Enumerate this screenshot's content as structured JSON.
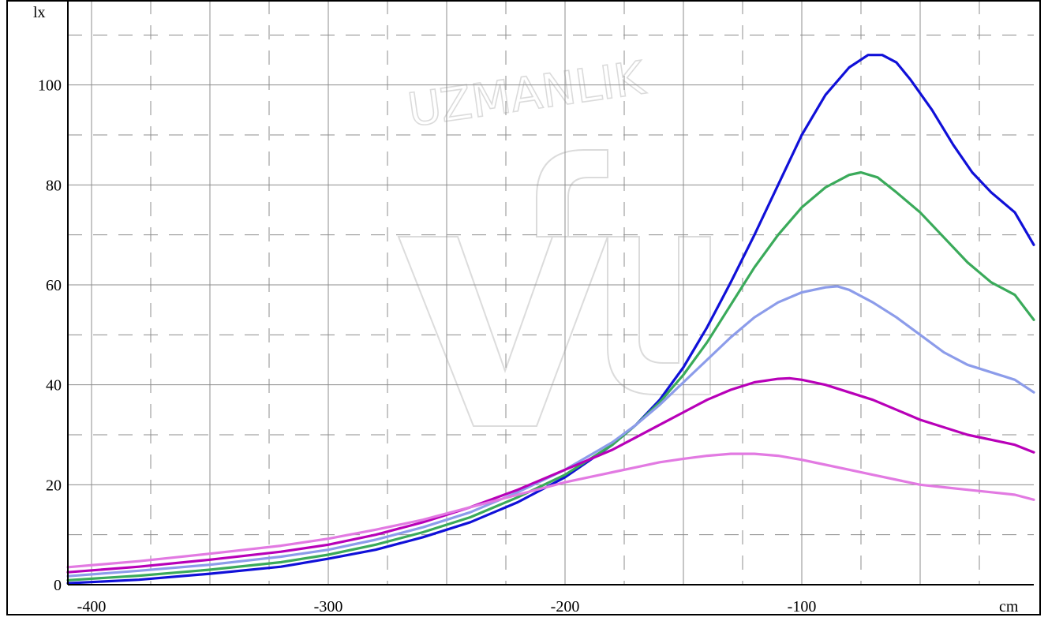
{
  "chart_data": {
    "type": "line",
    "x_unit": "cm",
    "y_unit": "lx",
    "xlim": [
      -410,
      -2
    ],
    "ylim": [
      0,
      117
    ],
    "x_ticks": [
      -400,
      -300,
      -200,
      -100
    ],
    "x_tick_labels": [
      "-400",
      "-300",
      "-200",
      "-100"
    ],
    "y_ticks": [
      0,
      20,
      40,
      60,
      80,
      100
    ],
    "y_tick_labels": [
      "0",
      "20",
      "40",
      "60",
      "80",
      "100"
    ],
    "grid": true,
    "colors": [
      "#1010d8",
      "#3aaa5a",
      "#8c9cea",
      "#b800b8",
      "#e27ae2"
    ],
    "series": [
      {
        "points": [
          [
            -410,
            0.3
          ],
          [
            -380,
            1.0
          ],
          [
            -350,
            2.2
          ],
          [
            -320,
            3.6
          ],
          [
            -300,
            5.2
          ],
          [
            -280,
            7.0
          ],
          [
            -260,
            9.5
          ],
          [
            -240,
            12.5
          ],
          [
            -220,
            16.5
          ],
          [
            -200,
            21.5
          ],
          [
            -180,
            28.0
          ],
          [
            -170,
            32.0
          ],
          [
            -160,
            37.0
          ],
          [
            -150,
            43.5
          ],
          [
            -140,
            51.5
          ],
          [
            -130,
            60.5
          ],
          [
            -120,
            70.0
          ],
          [
            -110,
            80.0
          ],
          [
            -100,
            90.0
          ],
          [
            -90,
            98.0
          ],
          [
            -80,
            103.5
          ],
          [
            -72,
            106.0
          ],
          [
            -66,
            106.0
          ],
          [
            -60,
            104.5
          ],
          [
            -54,
            101.0
          ],
          [
            -45,
            95.0
          ],
          [
            -36,
            88.0
          ],
          [
            -28,
            82.5
          ],
          [
            -20,
            78.5
          ],
          [
            -10,
            74.5
          ],
          [
            -2,
            68.0
          ]
        ]
      },
      {
        "points": [
          [
            -410,
            0.9
          ],
          [
            -380,
            1.8
          ],
          [
            -350,
            3.0
          ],
          [
            -320,
            4.5
          ],
          [
            -300,
            6.0
          ],
          [
            -280,
            8.0
          ],
          [
            -260,
            10.5
          ],
          [
            -240,
            13.5
          ],
          [
            -220,
            17.5
          ],
          [
            -200,
            22.0
          ],
          [
            -180,
            28.0
          ],
          [
            -170,
            32.0
          ],
          [
            -160,
            36.5
          ],
          [
            -150,
            42.0
          ],
          [
            -140,
            48.5
          ],
          [
            -130,
            56.0
          ],
          [
            -120,
            63.5
          ],
          [
            -110,
            70.0
          ],
          [
            -100,
            75.5
          ],
          [
            -90,
            79.5
          ],
          [
            -80,
            82.0
          ],
          [
            -75,
            82.5
          ],
          [
            -68,
            81.5
          ],
          [
            -60,
            78.5
          ],
          [
            -50,
            74.5
          ],
          [
            -40,
            69.5
          ],
          [
            -30,
            64.5
          ],
          [
            -20,
            60.5
          ],
          [
            -10,
            58.0
          ],
          [
            -2,
            53.0
          ]
        ]
      },
      {
        "points": [
          [
            -410,
            1.7
          ],
          [
            -380,
            2.8
          ],
          [
            -350,
            4.0
          ],
          [
            -320,
            5.6
          ],
          [
            -300,
            7.0
          ],
          [
            -280,
            9.0
          ],
          [
            -260,
            11.5
          ],
          [
            -240,
            14.5
          ],
          [
            -220,
            18.5
          ],
          [
            -200,
            23.0
          ],
          [
            -180,
            28.5
          ],
          [
            -170,
            32.0
          ],
          [
            -160,
            36.0
          ],
          [
            -150,
            40.5
          ],
          [
            -140,
            45.0
          ],
          [
            -130,
            49.5
          ],
          [
            -120,
            53.5
          ],
          [
            -110,
            56.5
          ],
          [
            -100,
            58.5
          ],
          [
            -90,
            59.5
          ],
          [
            -85,
            59.7
          ],
          [
            -80,
            59.0
          ],
          [
            -70,
            56.5
          ],
          [
            -60,
            53.5
          ],
          [
            -50,
            50.0
          ],
          [
            -40,
            46.5
          ],
          [
            -30,
            44.0
          ],
          [
            -20,
            42.5
          ],
          [
            -10,
            41.0
          ],
          [
            -2,
            38.5
          ]
        ]
      },
      {
        "points": [
          [
            -410,
            2.5
          ],
          [
            -380,
            3.6
          ],
          [
            -350,
            5.0
          ],
          [
            -320,
            6.6
          ],
          [
            -300,
            8.0
          ],
          [
            -280,
            10.0
          ],
          [
            -260,
            12.5
          ],
          [
            -240,
            15.5
          ],
          [
            -220,
            19.0
          ],
          [
            -200,
            23.0
          ],
          [
            -180,
            27.0
          ],
          [
            -170,
            29.5
          ],
          [
            -160,
            32.0
          ],
          [
            -150,
            34.5
          ],
          [
            -140,
            37.0
          ],
          [
            -130,
            39.0
          ],
          [
            -120,
            40.5
          ],
          [
            -110,
            41.2
          ],
          [
            -105,
            41.3
          ],
          [
            -100,
            41.0
          ],
          [
            -90,
            40.0
          ],
          [
            -80,
            38.5
          ],
          [
            -70,
            37.0
          ],
          [
            -60,
            35.0
          ],
          [
            -50,
            33.0
          ],
          [
            -40,
            31.5
          ],
          [
            -30,
            30.0
          ],
          [
            -20,
            29.0
          ],
          [
            -10,
            28.0
          ],
          [
            -2,
            26.5
          ]
        ]
      },
      {
        "points": [
          [
            -410,
            3.5
          ],
          [
            -380,
            4.7
          ],
          [
            -350,
            6.2
          ],
          [
            -320,
            7.8
          ],
          [
            -300,
            9.2
          ],
          [
            -280,
            11.0
          ],
          [
            -260,
            13.0
          ],
          [
            -240,
            15.5
          ],
          [
            -220,
            18.0
          ],
          [
            -200,
            20.5
          ],
          [
            -180,
            22.5
          ],
          [
            -170,
            23.5
          ],
          [
            -160,
            24.5
          ],
          [
            -150,
            25.2
          ],
          [
            -140,
            25.8
          ],
          [
            -130,
            26.2
          ],
          [
            -120,
            26.2
          ],
          [
            -110,
            25.8
          ],
          [
            -100,
            25.0
          ],
          [
            -90,
            24.0
          ],
          [
            -80,
            23.0
          ],
          [
            -70,
            22.0
          ],
          [
            -60,
            21.0
          ],
          [
            -50,
            20.0
          ],
          [
            -40,
            19.5
          ],
          [
            -30,
            19.0
          ],
          [
            -20,
            18.5
          ],
          [
            -10,
            18.0
          ],
          [
            -2,
            17.0
          ]
        ]
      }
    ]
  }
}
